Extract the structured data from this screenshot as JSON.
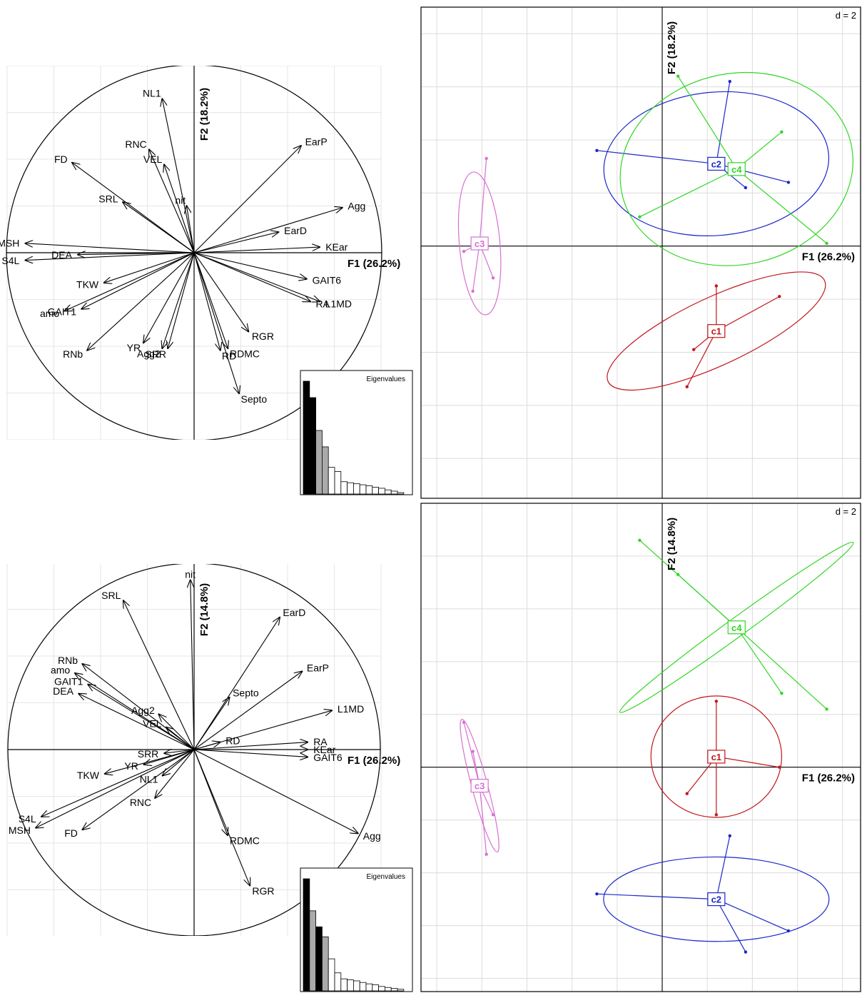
{
  "chart_data": [
    {
      "type": "pca-correlation-circle",
      "x_axis_label": "F1 (26.2%)",
      "y_axis_label": "F2 (18.2%)",
      "xlim": [
        -1,
        1
      ],
      "ylim": [
        -1,
        1
      ],
      "vectors": [
        {
          "name": "NL1",
          "x": -0.17,
          "y": 0.82
        },
        {
          "name": "RNC",
          "x": -0.24,
          "y": 0.55
        },
        {
          "name": "VEL",
          "x": -0.16,
          "y": 0.47
        },
        {
          "name": "FD",
          "x": -0.65,
          "y": 0.48
        },
        {
          "name": "SRL",
          "x": -0.38,
          "y": 0.27
        },
        {
          "name": "nit",
          "x": -0.04,
          "y": 0.25
        },
        {
          "name": "EarP",
          "x": 0.57,
          "y": 0.57
        },
        {
          "name": "Agg",
          "x": 0.79,
          "y": 0.24
        },
        {
          "name": "EarD",
          "x": 0.45,
          "y": 0.11
        },
        {
          "name": "MSH",
          "x": -0.9,
          "y": 0.05
        },
        {
          "name": "DEA",
          "x": -0.62,
          "y": -0.01
        },
        {
          "name": "S4L",
          "x": -0.9,
          "y": -0.04
        },
        {
          "name": "KEar",
          "x": 0.67,
          "y": 0.03
        },
        {
          "name": "GAIT6",
          "x": 0.6,
          "y": -0.14
        },
        {
          "name": "TKW",
          "x": -0.48,
          "y": -0.16
        },
        {
          "name": "amo",
          "x": -0.69,
          "y": -0.31
        },
        {
          "name": "GAIT1",
          "x": -0.6,
          "y": -0.3
        },
        {
          "name": "RA",
          "x": 0.62,
          "y": -0.26
        },
        {
          "name": "L1MD",
          "x": 0.67,
          "y": -0.26
        },
        {
          "name": "RNb",
          "x": -0.57,
          "y": -0.52
        },
        {
          "name": "YR",
          "x": -0.27,
          "y": -0.48
        },
        {
          "name": "Agg2",
          "x": -0.17,
          "y": -0.51
        },
        {
          "name": "SRR",
          "x": -0.14,
          "y": -0.51
        },
        {
          "name": "RGR",
          "x": 0.29,
          "y": -0.42
        },
        {
          "name": "RD",
          "x": 0.14,
          "y": -0.52
        },
        {
          "name": "RDMC",
          "x": 0.18,
          "y": -0.51
        },
        {
          "name": "Septo",
          "x": 0.24,
          "y": -0.75
        }
      ],
      "eigenvalues_title": "Eigenvalues",
      "eigenvalues": [
        5.5,
        4.7,
        3.1,
        2.3,
        1.3,
        1.1,
        0.6,
        0.55,
        0.5,
        0.45,
        0.4,
        0.33,
        0.28,
        0.2,
        0.14,
        0.07
      ]
    },
    {
      "type": "cluster-scatter",
      "x_axis_label": "F1 (26.2%)",
      "y_axis_label": "F2 (18.2%)",
      "scale_label": "d = 2",
      "xlim": [
        -10.7,
        8.8
      ],
      "ylim": [
        -9.5,
        9.0
      ],
      "clusters": [
        {
          "name": "c1",
          "color": "#c0161b",
          "center": [
            2.4,
            -3.2
          ],
          "points": [
            [
              2.4,
              -1.5
            ],
            [
              5.2,
              -1.9
            ],
            [
              1.4,
              -3.9
            ],
            [
              1.1,
              -5.3
            ]
          ],
          "ellipse": {
            "rx": 1.5,
            "ry": 4.5,
            "angle_deg": 65
          }
        },
        {
          "name": "c2",
          "color": "#1a28c8",
          "center": [
            2.4,
            3.1
          ],
          "points": [
            [
              3.0,
              6.2
            ],
            [
              -2.9,
              3.6
            ],
            [
              3.7,
              2.2
            ],
            [
              5.6,
              2.4
            ]
          ],
          "ellipse": {
            "rx": 5.0,
            "ry": 2.7,
            "angle_deg": -5
          }
        },
        {
          "name": "c4",
          "color": "#31d625",
          "center": [
            3.3,
            2.9
          ],
          "points": [
            [
              0.7,
              6.4
            ],
            [
              5.3,
              4.3
            ],
            [
              -1.0,
              1.1
            ],
            [
              7.3,
              0.1
            ]
          ],
          "ellipse": {
            "rx": 5.2,
            "ry": 3.6,
            "angle_deg": -12
          }
        },
        {
          "name": "c3",
          "color": "#d86fd2",
          "center": [
            -8.1,
            0.1
          ],
          "points": [
            [
              -7.8,
              3.3
            ],
            [
              -8.8,
              -0.2
            ],
            [
              -8.4,
              -1.7
            ],
            [
              -7.5,
              -1.2
            ]
          ],
          "ellipse": {
            "rx": 0.9,
            "ry": 2.7,
            "angle_deg": -5
          }
        }
      ]
    },
    {
      "type": "pca-correlation-circle",
      "x_axis_label": "F1 (26.2%)",
      "y_axis_label": "F2 (14.8%)",
      "xlim": [
        -1,
        1
      ],
      "ylim": [
        -1,
        1
      ],
      "vectors": [
        {
          "name": "nit",
          "x": -0.02,
          "y": 0.91
        },
        {
          "name": "SRL",
          "x": -0.38,
          "y": 0.8
        },
        {
          "name": "EarD",
          "x": 0.46,
          "y": 0.71
        },
        {
          "name": "RNb",
          "x": -0.6,
          "y": 0.46
        },
        {
          "name": "amo",
          "x": -0.64,
          "y": 0.41
        },
        {
          "name": "EarP",
          "x": 0.58,
          "y": 0.42
        },
        {
          "name": "GAIT1",
          "x": -0.57,
          "y": 0.35
        },
        {
          "name": "DEA",
          "x": -0.62,
          "y": 0.3
        },
        {
          "name": "Septo",
          "x": 0.19,
          "y": 0.28
        },
        {
          "name": "L1MD",
          "x": 0.74,
          "y": 0.21
        },
        {
          "name": "Agg2",
          "x": -0.19,
          "y": 0.19
        },
        {
          "name": "VEL",
          "x": -0.15,
          "y": 0.12
        },
        {
          "name": "RD",
          "x": 0.14,
          "y": 0.04
        },
        {
          "name": "RA",
          "x": 0.61,
          "y": 0.04
        },
        {
          "name": "KEar",
          "x": 0.61,
          "y": 0.0
        },
        {
          "name": "GAIT6",
          "x": 0.61,
          "y": -0.04
        },
        {
          "name": "SRR",
          "x": -0.16,
          "y": -0.02
        },
        {
          "name": "YR",
          "x": -0.27,
          "y": -0.08
        },
        {
          "name": "TKW",
          "x": -0.48,
          "y": -0.13
        },
        {
          "name": "NL1",
          "x": -0.17,
          "y": -0.14
        },
        {
          "name": "RNC",
          "x": -0.21,
          "y": -0.26
        },
        {
          "name": "S4L",
          "x": -0.82,
          "y": -0.36
        },
        {
          "name": "MSH",
          "x": -0.85,
          "y": -0.42
        },
        {
          "name": "FD",
          "x": -0.6,
          "y": -0.43
        },
        {
          "name": "RDMC",
          "x": 0.18,
          "y": -0.46
        },
        {
          "name": "RGR",
          "x": 0.3,
          "y": -0.73
        },
        {
          "name": "Agg",
          "x": 0.88,
          "y": -0.45
        }
      ],
      "eigenvalues_title": "Eigenvalues",
      "eigenvalues": [
        5.6,
        4.0,
        3.2,
        2.7,
        1.6,
        0.9,
        0.6,
        0.55,
        0.5,
        0.42,
        0.35,
        0.3,
        0.22,
        0.17,
        0.12,
        0.08
      ]
    },
    {
      "type": "cluster-scatter",
      "x_axis_label": "F1 (26.2%)",
      "y_axis_label": "F2 (14.8%)",
      "scale_label": "d = 2",
      "xlim": [
        -10.7,
        8.8
      ],
      "ylim": [
        -8.5,
        10.0
      ],
      "clusters": [
        {
          "name": "c1",
          "color": "#c0161b",
          "center": [
            2.4,
            0.4
          ],
          "points": [
            [
              2.4,
              2.5
            ],
            [
              5.2,
              0.0
            ],
            [
              1.1,
              -1.0
            ],
            [
              2.4,
              -1.8
            ]
          ],
          "ellipse": {
            "rx": 2.9,
            "ry": 2.3,
            "angle_deg": 0
          }
        },
        {
          "name": "c2",
          "color": "#1a28c8",
          "center": [
            2.4,
            -5.0
          ],
          "points": [
            [
              3.0,
              -2.6
            ],
            [
              -2.9,
              -4.8
            ],
            [
              5.6,
              -6.2
            ],
            [
              3.7,
              -7.0
            ]
          ],
          "ellipse": {
            "rx": 5.0,
            "ry": 1.6,
            "angle_deg": 0
          }
        },
        {
          "name": "c4",
          "color": "#31d625",
          "center": [
            3.3,
            5.3
          ],
          "points": [
            [
              -1.0,
              8.6
            ],
            [
              0.7,
              7.3
            ],
            [
              5.3,
              2.8
            ],
            [
              7.3,
              2.2
            ]
          ],
          "ellipse": {
            "rx": 6.4,
            "ry": 0.35,
            "angle_deg": -36
          }
        },
        {
          "name": "c3",
          "color": "#d86fd2",
          "center": [
            -8.1,
            -0.7
          ],
          "points": [
            [
              -8.8,
              1.7
            ],
            [
              -8.4,
              0.6
            ],
            [
              -7.5,
              -1.8
            ],
            [
              -7.8,
              -3.3
            ]
          ],
          "ellipse": {
            "rx": 0.35,
            "ry": 2.6,
            "angle_deg": -15
          }
        }
      ]
    }
  ]
}
